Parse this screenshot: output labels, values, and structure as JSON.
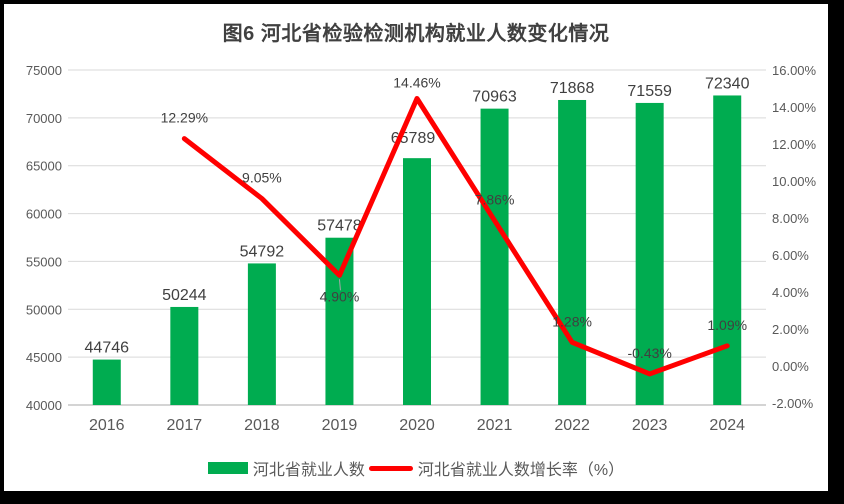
{
  "chart_data": {
    "type": "bar",
    "combo": "bar+line",
    "title": "图6 河北省检验检测机构就业人数变化情况",
    "categories": [
      "2016",
      "2017",
      "2018",
      "2019",
      "2020",
      "2021",
      "2022",
      "2023",
      "2024"
    ],
    "series": [
      {
        "name": "河北省就业人数",
        "type": "bar",
        "axis": "left",
        "color": "#00AC50",
        "values": [
          44746,
          50244,
          54792,
          57478,
          65789,
          70963,
          71868,
          71559,
          72340
        ],
        "labels": [
          "44746",
          "50244",
          "54792",
          "57478",
          "65789",
          "70963",
          "71868",
          "71559",
          "72340"
        ]
      },
      {
        "name": "河北省就业人数增长率（%）",
        "type": "line",
        "axis": "right",
        "color": "#FF0000",
        "start_index": 1,
        "values": [
          12.29,
          9.05,
          4.9,
          14.46,
          7.86,
          1.28,
          -0.43,
          1.09
        ],
        "labels": [
          "12.29%",
          "9.05%",
          "4.90%",
          "14.46%",
          "7.86%",
          "1.28%",
          "-0.43%",
          "1.09%"
        ],
        "label_placement": [
          "above",
          "above",
          "below",
          "peak",
          "above",
          "above",
          "above",
          "above"
        ]
      }
    ],
    "left_axis": {
      "min": 40000,
      "max": 75000,
      "step": 5000,
      "ticks": [
        "75000",
        "70000",
        "65000",
        "60000",
        "55000",
        "50000",
        "45000",
        "40000"
      ]
    },
    "right_axis": {
      "min": -2,
      "max": 16,
      "step": 2,
      "ticks": [
        "16.00%",
        "14.00%",
        "12.00%",
        "10.00%",
        "8.00%",
        "6.00%",
        "4.00%",
        "2.00%",
        "0.00%",
        "-2.00%"
      ]
    },
    "legend": [
      {
        "label": "河北省就业人数",
        "swatch": "bar",
        "color": "#00AC50"
      },
      {
        "label": "河北省就业人数增长率（%）",
        "swatch": "line",
        "color": "#FF0000"
      }
    ],
    "grid": true,
    "legend_position": "bottom",
    "colors": {
      "bar": "#00AC50",
      "line": "#FF0000",
      "grid": "#D9D9D9",
      "axis": "#C6C6C6",
      "tick_text": "#595959",
      "label_text": "#404040",
      "title_text": "#404040",
      "leader": "#A6A6A6",
      "background": "#FFFFFF",
      "frame": "#000000"
    }
  }
}
